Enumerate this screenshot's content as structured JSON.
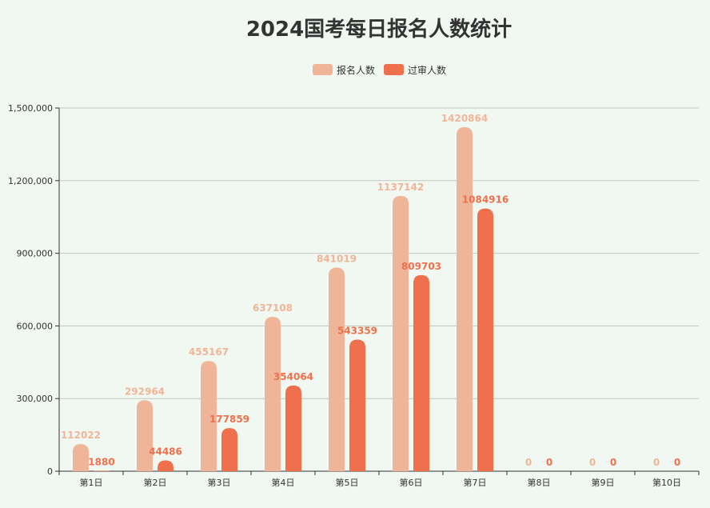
{
  "chart_data": {
    "type": "bar",
    "title": "2024国考每日报名人数统计",
    "categories": [
      "第1日",
      "第2日",
      "第3日",
      "第4日",
      "第5日",
      "第6日",
      "第7日",
      "第8日",
      "第9日",
      "第10日"
    ],
    "series": [
      {
        "name": "报名人数",
        "color": "#f0b598",
        "values": [
          112022,
          292964,
          455167,
          637108,
          841019,
          1137142,
          1420864,
          0,
          0,
          0
        ]
      },
      {
        "name": "过审人数",
        "color": "#ef704c",
        "values": [
          1880,
          44486,
          177859,
          354064,
          543359,
          809703,
          1084916,
          0,
          0,
          0
        ]
      }
    ],
    "ylim": [
      0,
      1500000
    ],
    "yticks": [
      "0",
      "300,000",
      "600,000",
      "900,000",
      "1,200,000",
      "1,500,000"
    ],
    "ytick_values": [
      0,
      300000,
      600000,
      900000,
      1200000,
      1500000
    ],
    "grid": true,
    "legend_position": "top-center",
    "xlabel": "",
    "ylabel": ""
  }
}
